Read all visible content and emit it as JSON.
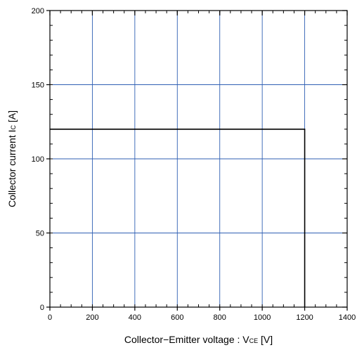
{
  "chart_data": {
    "type": "line",
    "title": "",
    "xlabel_parts": [
      "Collector−Emitter voltage : V",
      "CE",
      " [V]"
    ],
    "ylabel_parts": [
      "Collector current I",
      "C",
      " [A]"
    ],
    "xlim": [
      0,
      1400
    ],
    "ylim": [
      0,
      200
    ],
    "x_ticks": [
      0,
      200,
      400,
      600,
      800,
      1000,
      1200,
      1400
    ],
    "y_ticks": [
      0,
      50,
      100,
      150,
      200
    ],
    "x_tick_labels": [
      "0",
      "200",
      "400",
      "600",
      "800",
      "1000",
      "1200",
      "1400"
    ],
    "y_tick_labels": [
      "0",
      "50",
      "100",
      "150",
      "200"
    ],
    "grid": true,
    "legend": "none",
    "series": [
      {
        "x": [
          0,
          1200,
          1200
        ],
        "y": [
          120,
          120,
          0
        ]
      }
    ],
    "colors": {
      "grid": "#2f5fb3",
      "line": "#000000",
      "frame": "#000000"
    }
  }
}
